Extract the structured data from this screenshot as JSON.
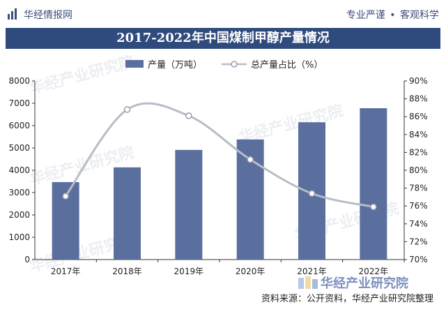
{
  "header": {
    "brand": "华经情报网",
    "slogan_left": "专业严谨",
    "slogan_sep": "•",
    "slogan_right": "客观科学"
  },
  "watermarks": [
    "华经产业研究院"
  ],
  "footer": {
    "brand": "华经产业研究院",
    "source": "资料来源：公开资料，华经产业研究院整理"
  },
  "colors": {
    "bar": "#5b6f9e",
    "line": "#b8bcc7",
    "marker_fill": "#ffffff",
    "marker_stroke": "#9a9fab",
    "title_bg": "#2f4a7c"
  },
  "chart_data": {
    "type": "bar",
    "title": "2017-2022年中国煤制甲醇产量情况",
    "categories": [
      "2017年",
      "2018年",
      "2019年",
      "2020年",
      "2021年",
      "2022年"
    ],
    "series": [
      {
        "name": "产量（万吨）",
        "type": "bar",
        "axis": "left",
        "values": [
          3470,
          4130,
          4910,
          5380,
          6150,
          6780
        ]
      },
      {
        "name": "总产量占比（%）",
        "type": "line",
        "axis": "right",
        "values": [
          77.1,
          86.8,
          86.1,
          81.2,
          77.4,
          75.9
        ]
      }
    ],
    "y_left": {
      "min": 0,
      "max": 8000,
      "step": 1000,
      "ticks": [
        "0",
        "1000",
        "2000",
        "3000",
        "4000",
        "5000",
        "6000",
        "7000",
        "8000"
      ]
    },
    "y_right": {
      "min": 70,
      "max": 90,
      "step": 2,
      "ticks": [
        "70%",
        "72%",
        "74%",
        "76%",
        "78%",
        "80%",
        "82%",
        "84%",
        "86%",
        "88%",
        "90%"
      ]
    },
    "legend_position": "top-center",
    "grid": false
  }
}
